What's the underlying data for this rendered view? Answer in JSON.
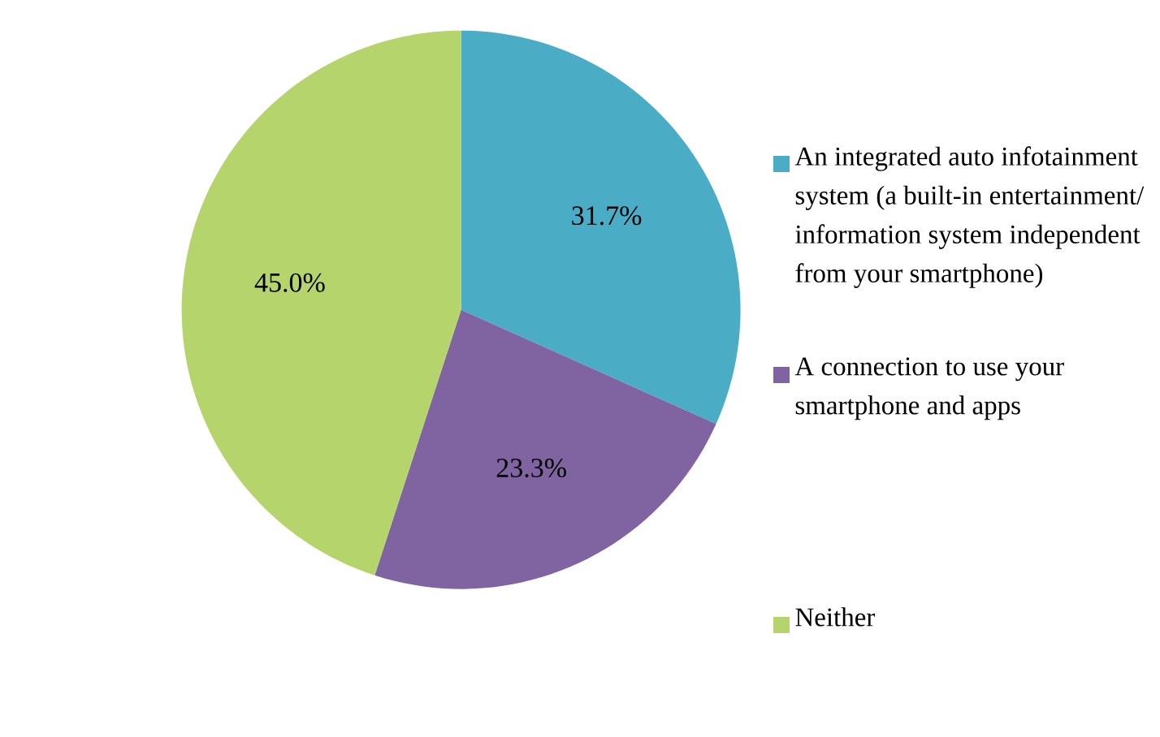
{
  "chart_data": {
    "type": "pie",
    "categories": [
      "An integrated auto infotainment system (a built-in entertainment/ information system independent from your smartphone)",
      "A connection to use your smartphone and apps",
      "Neither"
    ],
    "values": [
      31.7,
      23.3,
      45.0
    ],
    "colors": [
      "#4bacc6",
      "#8064a2",
      "#b5d56c"
    ],
    "value_labels": [
      "31.7%",
      "23.3%",
      "45.0%"
    ],
    "legend": "right"
  }
}
